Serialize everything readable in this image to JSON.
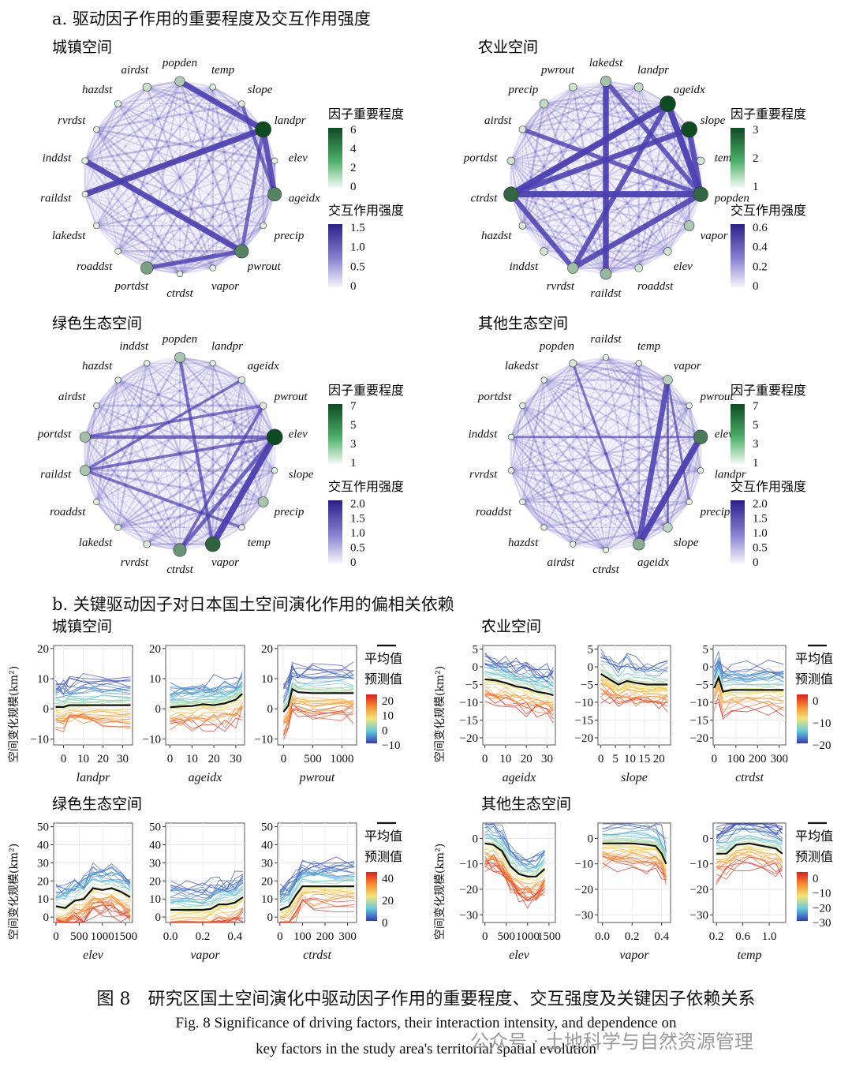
{
  "section_a": {
    "title": "a. 驱动因子作用的重要程度及交互作用强度"
  },
  "section_b": {
    "title": "b. 关键驱动因子对日本国土空间演化作用的偏相关依赖"
  },
  "legend_labels": {
    "importance": "因子重要程度",
    "interaction": "交互作用强度",
    "mean": "平均值",
    "predicted": "预测值"
  },
  "y_axis_label": "空间变化规模(km²)",
  "colors": {
    "edge": "#4b3fb0",
    "node_light": "#9fe0a8",
    "node_dark": "#0f3d1e"
  },
  "networks": [
    {
      "title": "城镇空间",
      "nodes": [
        "popden",
        "temp",
        "slope",
        "landpr",
        "elev",
        "ageidx",
        "precip",
        "pwrout",
        "vapor",
        "ctrdst",
        "portdst",
        "roaddst",
        "lakedst",
        "raildst",
        "inddst",
        "rvrdst",
        "hazdst",
        "airdst"
      ],
      "importance": [
        1.5,
        0.2,
        0.2,
        6,
        0.2,
        4,
        0.2,
        4,
        0.2,
        0.2,
        3,
        0.2,
        0.2,
        0.2,
        0.3,
        0.2,
        0.3,
        0.8
      ],
      "imp_ticks": [
        "6",
        "4",
        "2",
        "0"
      ],
      "int_ticks": [
        "1.5",
        "1.0",
        "0.5",
        "0"
      ],
      "strong_edges": [
        [
          "popden",
          "landpr",
          1.3
        ],
        [
          "landpr",
          "ageidx",
          1.2
        ],
        [
          "landpr",
          "raildst",
          1.4
        ],
        [
          "inddst",
          "pwrout",
          1.3
        ],
        [
          "landpr",
          "pwrout",
          0.7
        ],
        [
          "pwrout",
          "portdst",
          0.9
        ],
        [
          "ageidx",
          "slope",
          0.6
        ]
      ]
    },
    {
      "title": "农业空间",
      "nodes": [
        "lakedst",
        "landpr",
        "ageidx",
        "slope",
        "temp",
        "popden",
        "vapor",
        "elev",
        "roaddst",
        "raildst",
        "rvrdst",
        "inddst",
        "hazdst",
        "ctrdst",
        "portdst",
        "airdst",
        "precip",
        "pwrout"
      ],
      "importance": [
        0.9,
        0.5,
        3.8,
        3,
        0.3,
        2.5,
        0.8,
        0.3,
        0.3,
        1.1,
        1,
        0.3,
        0.2,
        2.5,
        0.3,
        0.2,
        0.5,
        0.3
      ],
      "imp_ticks": [
        "3",
        "2",
        "1"
      ],
      "int_ticks": [
        "0.6",
        "0.4",
        "0.2",
        "0"
      ],
      "strong_edges": [
        [
          "ctrdst",
          "popden",
          0.65
        ],
        [
          "ctrdst",
          "ageidx",
          0.6
        ],
        [
          "ctrdst",
          "slope",
          0.5
        ],
        [
          "lakedst",
          "raildst",
          0.55
        ],
        [
          "ageidx",
          "popden",
          0.6
        ],
        [
          "slope",
          "popden",
          0.5
        ],
        [
          "popden",
          "rvrdst",
          0.5
        ],
        [
          "ageidx",
          "rvrdst",
          0.45
        ],
        [
          "ctrdst",
          "rvrdst",
          0.45
        ],
        [
          "lakedst",
          "popden",
          0.4
        ],
        [
          "airdst",
          "popden",
          0.35
        ]
      ]
    },
    {
      "title": "绿色生态空间",
      "nodes": [
        "popden",
        "landpr",
        "ageidx",
        "pwrout",
        "elev",
        "slope",
        "precip",
        "temp",
        "vapor",
        "ctrdst",
        "rvrdst",
        "lakedst",
        "roaddst",
        "raildst",
        "portdst",
        "airdst",
        "hazdst",
        "inddst"
      ],
      "importance": [
        2,
        0.2,
        0.4,
        0.4,
        7,
        0.2,
        2,
        0.2,
        6,
        4,
        0.5,
        0.3,
        0.2,
        2,
        2.2,
        0.2,
        0.2,
        0.2
      ],
      "imp_ticks": [
        "7",
        "5",
        "3",
        "1"
      ],
      "int_ticks": [
        "2.0",
        "1.5",
        "1.0",
        "0.5",
        "0"
      ],
      "strong_edges": [
        [
          "elev",
          "vapor",
          2.0
        ],
        [
          "elev",
          "ctrdst",
          1.0
        ],
        [
          "portdst",
          "elev",
          0.8
        ],
        [
          "raildst",
          "elev",
          0.6
        ],
        [
          "popden",
          "vapor",
          0.7
        ],
        [
          "pwrout",
          "ctrdst",
          0.6
        ],
        [
          "raildst",
          "temp",
          0.6
        ],
        [
          "portdst",
          "pwrout",
          0.5
        ],
        [
          "raildst",
          "ageidx",
          0.5
        ]
      ]
    },
    {
      "title": "其他生态空间",
      "nodes": [
        "raildst",
        "temp",
        "vapor",
        "pwrout",
        "elev",
        "landpr",
        "precip",
        "slope",
        "ageidx",
        "ctrdst",
        "airdst",
        "hazdst",
        "roaddst",
        "rvrdst",
        "inddst",
        "portdst",
        "lakedst",
        "popden"
      ],
      "importance": [
        0.2,
        0.2,
        1.5,
        0.2,
        5,
        0.2,
        0.2,
        1.4,
        3,
        0.2,
        0.2,
        0.2,
        0.2,
        0.2,
        0.2,
        0.2,
        0.2,
        0.6
      ],
      "imp_ticks": [
        "7",
        "5",
        "3",
        "1"
      ],
      "int_ticks": [
        "2.0",
        "1.5",
        "1.0",
        "0.5",
        "0"
      ],
      "strong_edges": [
        [
          "elev",
          "ageidx",
          2.0
        ],
        [
          "vapor",
          "ageidx",
          1.6
        ],
        [
          "popden",
          "ageidx",
          0.4
        ],
        [
          "inddst",
          "elev",
          0.3
        ],
        [
          "vapor",
          "slope",
          0.3
        ],
        [
          "vapor",
          "precip",
          0.3
        ]
      ]
    }
  ],
  "pdp_groups": [
    {
      "title": "城镇空间",
      "ylim": [
        -12,
        21
      ],
      "yticks": [
        "20",
        "10",
        "0",
        "−10"
      ],
      "yvals": [
        20,
        10,
        0,
        -10
      ],
      "color_ticks": [
        "20",
        "10",
        "0",
        "−10"
      ],
      "panels": [
        {
          "xlabel": "landpr",
          "xticks": [
            "0",
            "10",
            "20",
            "30"
          ],
          "xvals": [
            0,
            10,
            20,
            30
          ],
          "xlim": [
            -5,
            35
          ],
          "mean": [
            [
              -4,
              0.6
            ],
            [
              0,
              0.6
            ],
            [
              3,
              1.2
            ],
            [
              10,
              1.2
            ],
            [
              20,
              1.2
            ],
            [
              34,
              1.2
            ]
          ]
        },
        {
          "xlabel": "ageidx",
          "xticks": [
            "0",
            "10",
            "20",
            "30"
          ],
          "xvals": [
            0,
            10,
            20,
            30
          ],
          "xlim": [
            -2,
            34
          ],
          "mean": [
            [
              0,
              0.5
            ],
            [
              5,
              0.8
            ],
            [
              10,
              0.9
            ],
            [
              15,
              1.5
            ],
            [
              20,
              1.2
            ],
            [
              25,
              1.8
            ],
            [
              30,
              3
            ],
            [
              33,
              5
            ]
          ]
        },
        {
          "xlabel": "pwrout",
          "xticks": [
            "0",
            "500",
            "1000"
          ],
          "xvals": [
            0,
            500,
            1000
          ],
          "xlim": [
            -100,
            1250
          ],
          "mean": [
            [
              0,
              -1
            ],
            [
              80,
              1
            ],
            [
              150,
              6.5
            ],
            [
              250,
              5.5
            ],
            [
              500,
              5.2
            ],
            [
              1000,
              5.2
            ],
            [
              1200,
              5.2
            ]
          ]
        }
      ]
    },
    {
      "title": "农业空间",
      "ylim": [
        -22,
        6
      ],
      "yticks": [
        "5",
        "0",
        "−5",
        "−10",
        "−15",
        "−20"
      ],
      "yvals": [
        5,
        0,
        -5,
        -10,
        -15,
        -20
      ],
      "color_ticks": [
        "0",
        "−10",
        "−20"
      ],
      "panels": [
        {
          "xlabel": "ageidx",
          "xticks": [
            "0",
            "10",
            "20",
            "30"
          ],
          "xvals": [
            0,
            10,
            20,
            30
          ],
          "xlim": [
            -1,
            34
          ],
          "mean": [
            [
              0,
              -3.5
            ],
            [
              5,
              -3.8
            ],
            [
              10,
              -4.5
            ],
            [
              15,
              -5.5
            ],
            [
              20,
              -6
            ],
            [
              25,
              -7
            ],
            [
              30,
              -7.5
            ],
            [
              33,
              -8
            ]
          ]
        },
        {
          "xlabel": "slope",
          "xticks": [
            "0",
            "5",
            "10",
            "15",
            "20"
          ],
          "xvals": [
            0,
            5,
            10,
            15,
            20
          ],
          "xlim": [
            -1,
            24
          ],
          "mean": [
            [
              0,
              -2
            ],
            [
              3,
              -3.5
            ],
            [
              6,
              -5
            ],
            [
              9,
              -4
            ],
            [
              12,
              -4.5
            ],
            [
              16,
              -5
            ],
            [
              20,
              -5
            ],
            [
              23,
              -5
            ]
          ]
        },
        {
          "xlabel": "ctrdst",
          "xticks": [
            "0",
            "100",
            "200",
            "300"
          ],
          "xvals": [
            0,
            100,
            200,
            300
          ],
          "xlim": [
            -5,
            330
          ],
          "mean": [
            [
              0,
              -6
            ],
            [
              20,
              -3
            ],
            [
              40,
              -7
            ],
            [
              80,
              -6.5
            ],
            [
              150,
              -6.5
            ],
            [
              250,
              -6.5
            ],
            [
              320,
              -6.5
            ]
          ]
        }
      ]
    },
    {
      "title": "绿色生态空间",
      "ylim": [
        -3,
        52
      ],
      "yticks": [
        "50",
        "40",
        "30",
        "20",
        "10",
        "0"
      ],
      "yvals": [
        50,
        40,
        30,
        20,
        10,
        0
      ],
      "color_ticks": [
        "40",
        "20",
        "0"
      ],
      "panels": [
        {
          "xlabel": "elev",
          "xticks": [
            "0",
            "500",
            "1000",
            "1500"
          ],
          "xvals": [
            0,
            500,
            1000,
            1500
          ],
          "xlim": [
            -50,
            1650
          ],
          "mean": [
            [
              0,
              6
            ],
            [
              200,
              5
            ],
            [
              400,
              9
            ],
            [
              600,
              10
            ],
            [
              800,
              16
            ],
            [
              1000,
              15
            ],
            [
              1200,
              16
            ],
            [
              1400,
              14
            ],
            [
              1600,
              11
            ]
          ]
        },
        {
          "xlabel": "vapor",
          "xticks": [
            "0.0",
            "0.2",
            "0.4"
          ],
          "xvals": [
            0,
            0.2,
            0.4
          ],
          "xlim": [
            -0.03,
            0.46
          ],
          "mean": [
            [
              0,
              4
            ],
            [
              0.1,
              4
            ],
            [
              0.2,
              4
            ],
            [
              0.25,
              4.5
            ],
            [
              0.3,
              7
            ],
            [
              0.35,
              7
            ],
            [
              0.4,
              8
            ],
            [
              0.45,
              11
            ]
          ]
        },
        {
          "xlabel": "ctrdst",
          "xticks": [
            "0",
            "100",
            "200",
            "300"
          ],
          "xvals": [
            0,
            100,
            200,
            300
          ],
          "xlim": [
            -10,
            340
          ],
          "mean": [
            [
              0,
              4
            ],
            [
              40,
              6
            ],
            [
              70,
              12
            ],
            [
              100,
              17
            ],
            [
              150,
              17
            ],
            [
              250,
              17
            ],
            [
              330,
              17
            ]
          ]
        }
      ]
    },
    {
      "title": "其他生态空间",
      "ylim": [
        -33,
        6
      ],
      "yticks": [
        "0",
        "−10",
        "−20",
        "−30"
      ],
      "yvals": [
        0,
        -10,
        -20,
        -30
      ],
      "color_ticks": [
        "0",
        "−10",
        "−20",
        "−30"
      ],
      "panels": [
        {
          "xlabel": "elev",
          "xticks": [
            "0",
            "500",
            "1000",
            "1500"
          ],
          "xvals": [
            0,
            500,
            1000,
            1500
          ],
          "xlim": [
            -50,
            1650
          ],
          "mean": [
            [
              0,
              -2
            ],
            [
              200,
              -2.5
            ],
            [
              400,
              -5
            ],
            [
              600,
              -11
            ],
            [
              800,
              -14
            ],
            [
              1000,
              -15
            ],
            [
              1200,
              -15
            ],
            [
              1400,
              -12
            ]
          ]
        },
        {
          "xlabel": "vapor",
          "xticks": [
            "0.0",
            "0.2",
            "0.4"
          ],
          "xvals": [
            0,
            0.2,
            0.4
          ],
          "xlim": [
            -0.03,
            0.46
          ],
          "mean": [
            [
              0,
              -2
            ],
            [
              0.1,
              -2
            ],
            [
              0.2,
              -2
            ],
            [
              0.3,
              -2.5
            ],
            [
              0.36,
              -3
            ],
            [
              0.4,
              -6
            ],
            [
              0.43,
              -10
            ]
          ]
        },
        {
          "xlabel": "temp",
          "xticks": [
            "0.2",
            "0.6",
            "1.0"
          ],
          "xvals": [
            0.2,
            0.6,
            1.0
          ],
          "xlim": [
            0.15,
            1.25
          ],
          "mean": [
            [
              0.2,
              -6
            ],
            [
              0.35,
              -6
            ],
            [
              0.5,
              -2.5
            ],
            [
              0.7,
              -2
            ],
            [
              0.9,
              -3
            ],
            [
              1.1,
              -4
            ],
            [
              1.2,
              -6
            ]
          ]
        }
      ]
    }
  ],
  "caption": {
    "zh": "图 8　研究区国土空间演化中驱动因子作用的重要程度、交互强度及关键因子依赖关系",
    "en_line1": "Fig. 8   Significance of driving factors, their interaction intensity, and dependence on",
    "en_line2": "key factors in the study area's territorial spatial evolution"
  },
  "watermark": "公众号 · 土地科学与自然资源管理"
}
